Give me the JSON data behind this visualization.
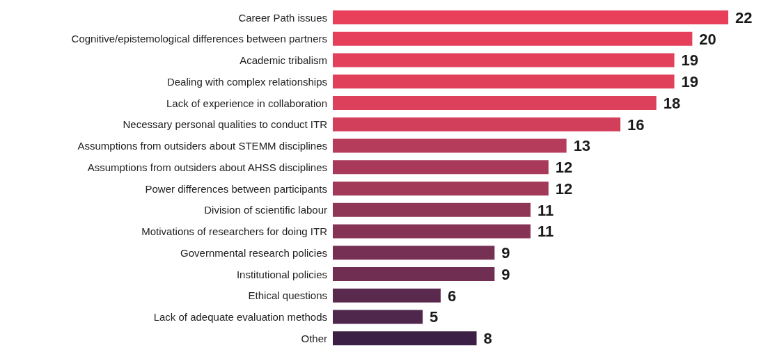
{
  "chart_data": {
    "type": "bar",
    "orientation": "horizontal",
    "data_labels": true,
    "categories": [
      "Career Path issues",
      "Cognitive/epistemological differences between partners",
      "Academic tribalism",
      "Dealing with complex relationships",
      "Lack of experience in collaboration",
      "Necessary personal qualities to conduct ITR",
      "Assumptions from outsiders about STEMM disciplines",
      "Assumptions from outsiders about AHSS disciplines",
      "Power differences between participants",
      "Division of scientific labour",
      "Motivations of researchers for doing ITR",
      "Governmental research policies",
      "Institutional policies",
      "Ethical questions",
      "Lack of adequate evaluation methods",
      "Other"
    ],
    "values": [
      22,
      20,
      19,
      19,
      18,
      16,
      13,
      12,
      12,
      11,
      11,
      9,
      9,
      6,
      5,
      8
    ],
    "colors": [
      "#e83f5b",
      "#e63f5b",
      "#e3405b",
      "#e1405b",
      "#dc405b",
      "#d23f5b",
      "#b63c5b",
      "#a8395a",
      "#a23959",
      "#8f3556",
      "#873355",
      "#763053",
      "#6f2e52",
      "#5a2a4e",
      "#50274c",
      "#3b1f45"
    ]
  }
}
